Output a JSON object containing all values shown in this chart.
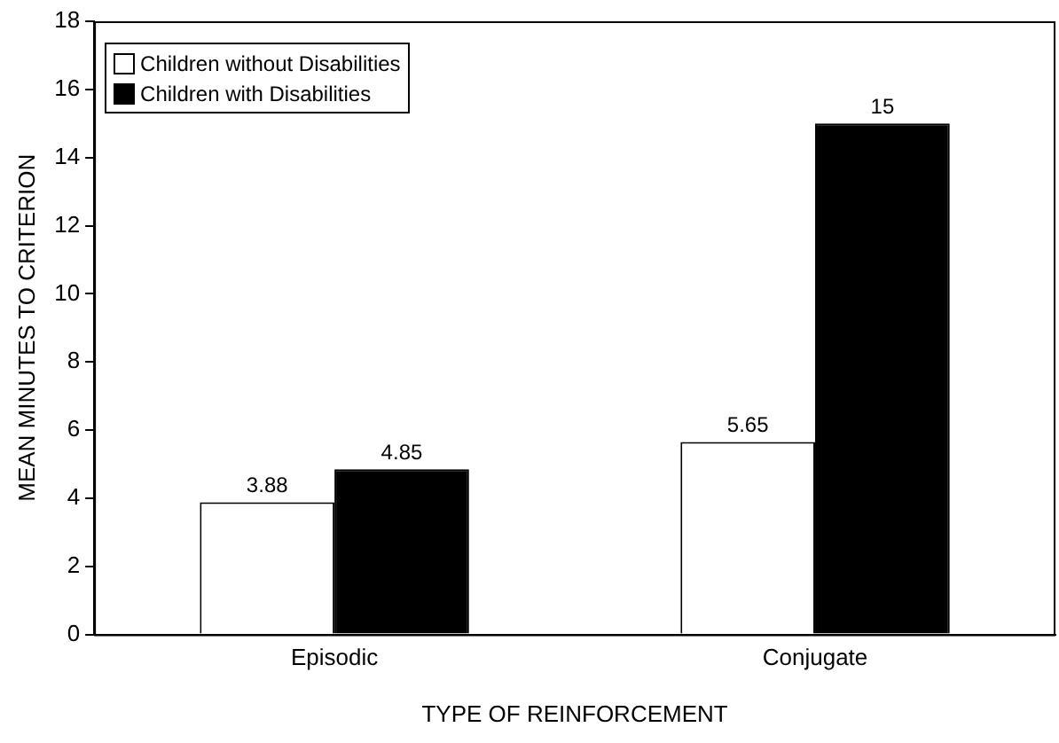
{
  "chart_data": {
    "type": "bar",
    "xlabel": "TYPE OF REINFORCEMENT",
    "ylabel": "MEAN MINUTES TO CRITERION",
    "categories": [
      "Episodic",
      "Conjugate"
    ],
    "series": [
      {
        "name": "Children without Disabilities",
        "color": "#ffffff",
        "values": [
          3.88,
          5.65
        ]
      },
      {
        "name": "Children with Disabilities",
        "color": "#000000",
        "values": [
          4.85,
          15
        ]
      }
    ],
    "ylim": [
      0,
      18
    ],
    "yticks": [
      0,
      2,
      4,
      6,
      8,
      10,
      12,
      14,
      16,
      18
    ],
    "grid": false,
    "legend": "top left",
    "data_labels": true
  }
}
